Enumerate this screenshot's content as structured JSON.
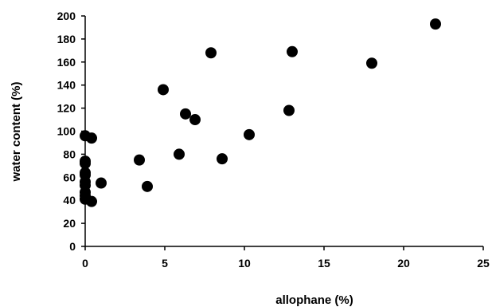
{
  "chart_data": {
    "type": "scatter",
    "title": "",
    "xlabel": "allophane  (%)",
    "ylabel": "water content  (%)",
    "xlim": [
      0,
      25
    ],
    "ylim": [
      0,
      200
    ],
    "x_ticks": [
      "0",
      "5",
      "10",
      "15",
      "20",
      "25"
    ],
    "y_ticks": [
      "0",
      "20",
      "40",
      "60",
      "80",
      "100",
      "120",
      "140",
      "160",
      "180",
      "200"
    ],
    "grid": false,
    "legend": "none",
    "point_color": "#000000",
    "series": [
      {
        "points": [
          {
            "x": 0.0,
            "y": 96
          },
          {
            "x": 0.4,
            "y": 94
          },
          {
            "x": 0.0,
            "y": 74
          },
          {
            "x": 0.0,
            "y": 72
          },
          {
            "x": 0.0,
            "y": 64
          },
          {
            "x": 0.0,
            "y": 62
          },
          {
            "x": 0.0,
            "y": 56
          },
          {
            "x": 0.0,
            "y": 53
          },
          {
            "x": 0.0,
            "y": 47
          },
          {
            "x": 0.0,
            "y": 44
          },
          {
            "x": 0.0,
            "y": 41
          },
          {
            "x": 0.4,
            "y": 39
          },
          {
            "x": 1.0,
            "y": 55
          },
          {
            "x": 3.4,
            "y": 75
          },
          {
            "x": 3.9,
            "y": 52
          },
          {
            "x": 4.9,
            "y": 136
          },
          {
            "x": 5.9,
            "y": 80
          },
          {
            "x": 6.3,
            "y": 115
          },
          {
            "x": 6.9,
            "y": 110
          },
          {
            "x": 7.9,
            "y": 168
          },
          {
            "x": 8.6,
            "y": 76
          },
          {
            "x": 10.3,
            "y": 97
          },
          {
            "x": 12.8,
            "y": 118
          },
          {
            "x": 13.0,
            "y": 169
          },
          {
            "x": 18.0,
            "y": 159
          },
          {
            "x": 22.0,
            "y": 193
          }
        ]
      }
    ]
  }
}
